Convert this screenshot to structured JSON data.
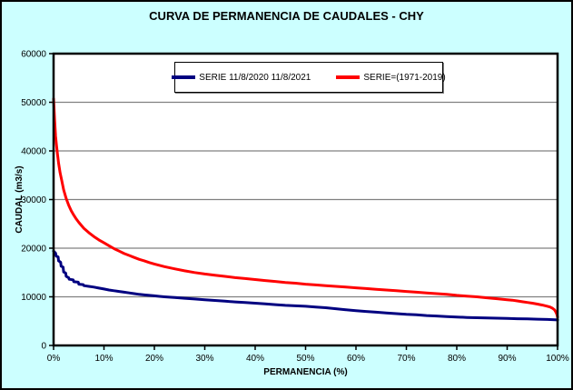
{
  "title": "CURVA DE PERMANENCIA DE CAUDALES - CHY",
  "legend": {
    "items": [
      {
        "label": "SERIE 11/8/2020 11/8/2021",
        "color": "#000080"
      },
      {
        "label": "SERIE=(1971-2019)",
        "color": "#ff0000"
      }
    ]
  },
  "colors": {
    "background": "#ccffff",
    "plot_background": "#ffffff",
    "gridline": "#808080",
    "axis": "#000000",
    "series_blue": "#000080",
    "series_red": "#ff0000"
  },
  "chart_data": {
    "type": "line",
    "title": "CURVA DE PERMANENCIA DE CAUDALES - CHY",
    "xlabel": "PERMANENCIA (%)",
    "ylabel": "CAUDAL (m3/s)",
    "xlim": [
      0,
      100
    ],
    "ylim": [
      0,
      60000
    ],
    "x_tick_labels": [
      "0%",
      "10%",
      "20%",
      "30%",
      "40%",
      "50%",
      "60%",
      "70%",
      "80%",
      "90%",
      "100%"
    ],
    "y_tick_labels": [
      "0",
      "10000",
      "20000",
      "30000",
      "40000",
      "50000",
      "60000"
    ],
    "grid": "horizontal-only",
    "legend_position": "top-center",
    "series": [
      {
        "name": "SERIE 11/8/2020 11/8/2021",
        "color": "#000080",
        "points": [
          [
            0,
            19400
          ],
          [
            0.4,
            19000
          ],
          [
            0.5,
            18400
          ],
          [
            0.9,
            18200
          ],
          [
            1.0,
            17400
          ],
          [
            1.4,
            17100
          ],
          [
            1.5,
            16300
          ],
          [
            1.9,
            16100
          ],
          [
            2.0,
            15100
          ],
          [
            2.4,
            14900
          ],
          [
            2.5,
            14200
          ],
          [
            3.0,
            13900
          ],
          [
            3.1,
            13600
          ],
          [
            3.9,
            13500
          ],
          [
            4.0,
            13100
          ],
          [
            4.9,
            13000
          ],
          [
            5.0,
            12600
          ],
          [
            5.9,
            12500
          ],
          [
            6.0,
            12300
          ],
          [
            7,
            12150
          ],
          [
            8,
            12000
          ],
          [
            9,
            11800
          ],
          [
            10,
            11600
          ],
          [
            11,
            11400
          ],
          [
            12,
            11250
          ],
          [
            13,
            11100
          ],
          [
            14,
            10950
          ],
          [
            15,
            10800
          ],
          [
            16,
            10650
          ],
          [
            17,
            10500
          ],
          [
            18,
            10400
          ],
          [
            19,
            10300
          ],
          [
            20,
            10200
          ],
          [
            21,
            10100
          ],
          [
            22,
            10000
          ],
          [
            24,
            9850
          ],
          [
            26,
            9700
          ],
          [
            28,
            9550
          ],
          [
            30,
            9400
          ],
          [
            32,
            9250
          ],
          [
            34,
            9100
          ],
          [
            36,
            8950
          ],
          [
            38,
            8850
          ],
          [
            40,
            8700
          ],
          [
            42,
            8550
          ],
          [
            44,
            8400
          ],
          [
            46,
            8250
          ],
          [
            48,
            8150
          ],
          [
            50,
            8050
          ],
          [
            52,
            7900
          ],
          [
            54,
            7750
          ],
          [
            56,
            7550
          ],
          [
            58,
            7350
          ],
          [
            60,
            7150
          ],
          [
            62,
            7000
          ],
          [
            64,
            6850
          ],
          [
            66,
            6700
          ],
          [
            68,
            6550
          ],
          [
            70,
            6400
          ],
          [
            72,
            6300
          ],
          [
            74,
            6150
          ],
          [
            76,
            6050
          ],
          [
            78,
            5950
          ],
          [
            80,
            5850
          ],
          [
            82,
            5750
          ],
          [
            84,
            5700
          ],
          [
            86,
            5650
          ],
          [
            88,
            5600
          ],
          [
            90,
            5550
          ],
          [
            92,
            5500
          ],
          [
            94,
            5450
          ],
          [
            96,
            5400
          ],
          [
            98,
            5350
          ],
          [
            100,
            5250
          ]
        ]
      },
      {
        "name": "SERIE=(1971-2019)",
        "color": "#ff0000",
        "points": [
          [
            0,
            50700
          ],
          [
            0.2,
            46500
          ],
          [
            0.4,
            43000
          ],
          [
            0.6,
            41000
          ],
          [
            0.8,
            39200
          ],
          [
            1,
            37500
          ],
          [
            1.3,
            35500
          ],
          [
            1.6,
            34000
          ],
          [
            2,
            32000
          ],
          [
            2.5,
            30200
          ],
          [
            3,
            28800
          ],
          [
            3.5,
            27700
          ],
          [
            4,
            26800
          ],
          [
            4.5,
            26000
          ],
          [
            5,
            25300
          ],
          [
            6,
            24100
          ],
          [
            7,
            23200
          ],
          [
            8,
            22400
          ],
          [
            9,
            21700
          ],
          [
            10,
            21100
          ],
          [
            11,
            20500
          ],
          [
            12,
            19900
          ],
          [
            13,
            19400
          ],
          [
            14,
            18900
          ],
          [
            15,
            18500
          ],
          [
            16,
            18100
          ],
          [
            17,
            17700
          ],
          [
            18,
            17400
          ],
          [
            19,
            17050
          ],
          [
            20,
            16750
          ],
          [
            22,
            16200
          ],
          [
            24,
            15750
          ],
          [
            26,
            15350
          ],
          [
            28,
            15000
          ],
          [
            30,
            14700
          ],
          [
            32,
            14450
          ],
          [
            34,
            14200
          ],
          [
            36,
            13950
          ],
          [
            38,
            13750
          ],
          [
            40,
            13550
          ],
          [
            42,
            13350
          ],
          [
            44,
            13150
          ],
          [
            46,
            12950
          ],
          [
            48,
            12800
          ],
          [
            50,
            12600
          ],
          [
            52,
            12450
          ],
          [
            54,
            12300
          ],
          [
            56,
            12150
          ],
          [
            58,
            12000
          ],
          [
            60,
            11850
          ],
          [
            62,
            11700
          ],
          [
            64,
            11550
          ],
          [
            66,
            11400
          ],
          [
            68,
            11250
          ],
          [
            70,
            11100
          ],
          [
            72,
            10950
          ],
          [
            74,
            10800
          ],
          [
            76,
            10650
          ],
          [
            78,
            10500
          ],
          [
            80,
            10300
          ],
          [
            82,
            10150
          ],
          [
            84,
            10000
          ],
          [
            86,
            9800
          ],
          [
            88,
            9600
          ],
          [
            90,
            9400
          ],
          [
            91,
            9300
          ],
          [
            92,
            9150
          ],
          [
            93,
            9000
          ],
          [
            94,
            8850
          ],
          [
            95,
            8700
          ],
          [
            96,
            8500
          ],
          [
            97,
            8300
          ],
          [
            98,
            8050
          ],
          [
            98.5,
            7900
          ],
          [
            99,
            7650
          ],
          [
            99.4,
            7300
          ],
          [
            99.7,
            6800
          ],
          [
            99.9,
            6300
          ],
          [
            100,
            5800
          ]
        ]
      }
    ]
  }
}
